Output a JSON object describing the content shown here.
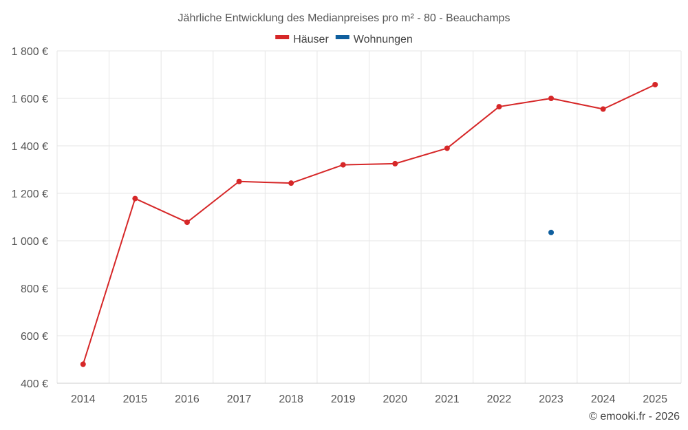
{
  "chart_data": {
    "type": "line",
    "title": "Jährliche Entwicklung des Medianpreises pro m² - 80 - Beauchamps",
    "xlabel": "",
    "ylabel": "",
    "categories": [
      "2014",
      "2015",
      "2016",
      "2017",
      "2018",
      "2019",
      "2020",
      "2021",
      "2022",
      "2023",
      "2024",
      "2025"
    ],
    "ylim": [
      400,
      1800
    ],
    "yticks": [
      400,
      600,
      800,
      1000,
      1200,
      1400,
      1600,
      1800
    ],
    "ytick_labels": [
      "400 €",
      "600 €",
      "800 €",
      "1 000 €",
      "1 200 €",
      "1 400 €",
      "1 600 €",
      "1 800 €"
    ],
    "grid": true,
    "legend_position": "top-center",
    "series": [
      {
        "name": "Häuser",
        "color": "#d62728",
        "values": [
          480,
          1178,
          1078,
          1250,
          1243,
          1320,
          1325,
          1390,
          1565,
          1600,
          1555,
          1658
        ]
      },
      {
        "name": "Wohnungen",
        "color": "#0f5f9e",
        "values": [
          null,
          null,
          null,
          null,
          null,
          null,
          null,
          null,
          null,
          1035,
          null,
          null
        ]
      }
    ]
  },
  "credit": "© emooki.fr - 2026"
}
